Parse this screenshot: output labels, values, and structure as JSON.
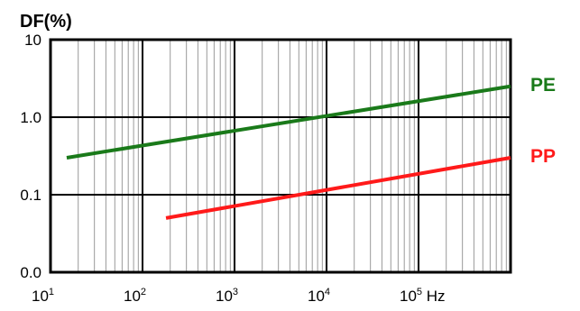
{
  "chart_data": {
    "type": "line",
    "title": "DF(%)",
    "xlabel": "",
    "ylabel": "DF(%)",
    "x_scale": "log",
    "y_scale": "log",
    "xlim": [
      10,
      1000000
    ],
    "ylim": [
      0.01,
      10
    ],
    "grid": true,
    "x_ticks": [
      {
        "value": 10,
        "base": "10",
        "exp": "1",
        "suffix": ""
      },
      {
        "value": 100,
        "base": "10",
        "exp": "2",
        "suffix": ""
      },
      {
        "value": 1000,
        "base": "10",
        "exp": "3",
        "suffix": ""
      },
      {
        "value": 10000,
        "base": "10",
        "exp": "4",
        "suffix": ""
      },
      {
        "value": 100000,
        "base": "10",
        "exp": "5",
        "suffix": " Hz"
      }
    ],
    "y_ticks": [
      {
        "value": 10,
        "label": "10"
      },
      {
        "value": 1,
        "label": "1.0"
      },
      {
        "value": 0.1,
        "label": "0.1"
      },
      {
        "value": 0.01,
        "label": "0.0"
      }
    ],
    "series": [
      {
        "name": "PE",
        "color": "#1a7a1a",
        "x": [
          15,
          1000000
        ],
        "y": [
          0.3,
          2.5
        ]
      },
      {
        "name": "PP",
        "color": "#ff1a1a",
        "x": [
          180,
          1000000
        ],
        "y": [
          0.05,
          0.3
        ]
      }
    ]
  }
}
